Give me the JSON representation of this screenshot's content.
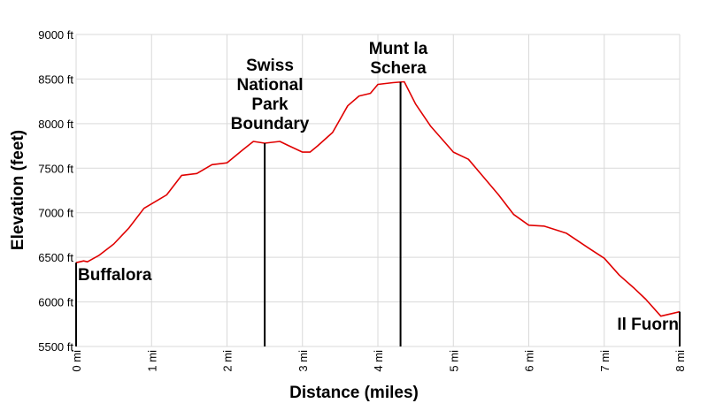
{
  "chart_data": {
    "type": "line",
    "title": "",
    "xlabel": "Distance (miles)",
    "ylabel": "Elevation (feet)",
    "xlim": [
      0,
      8
    ],
    "ylim": [
      5500,
      9000
    ],
    "grid": true,
    "x_ticks": [
      {
        "v": 0,
        "label": "0 mi"
      },
      {
        "v": 1,
        "label": "1 mi"
      },
      {
        "v": 2,
        "label": "2 mi"
      },
      {
        "v": 3,
        "label": "3 mi"
      },
      {
        "v": 4,
        "label": "4 mi"
      },
      {
        "v": 5,
        "label": "5 mi"
      },
      {
        "v": 6,
        "label": "6 mi"
      },
      {
        "v": 7,
        "label": "7 mi"
      },
      {
        "v": 8,
        "label": "8 mi"
      }
    ],
    "y_ticks": [
      {
        "v": 5500,
        "label": "5500 ft"
      },
      {
        "v": 6000,
        "label": "6000 ft"
      },
      {
        "v": 6500,
        "label": "6500 ft"
      },
      {
        "v": 7000,
        "label": "7000 ft"
      },
      {
        "v": 7500,
        "label": "7500 ft"
      },
      {
        "v": 8000,
        "label": "8000 ft"
      },
      {
        "v": 8500,
        "label": "8500 ft"
      },
      {
        "v": 9000,
        "label": "9000 ft"
      }
    ],
    "line_color": "#e00000",
    "series": [
      {
        "x": [
          0,
          0.1,
          0.15,
          0.3,
          0.5,
          0.7,
          0.9,
          1.1,
          1.2,
          1.4,
          1.6,
          1.8,
          2.0,
          2.2,
          2.35,
          2.5,
          2.7,
          2.8,
          3.0,
          3.1,
          3.2,
          3.4,
          3.6,
          3.75,
          3.9,
          4.0,
          4.2,
          4.35,
          4.5,
          4.7,
          5.0,
          5.2,
          5.4,
          5.6,
          5.8,
          6.0,
          6.2,
          6.5,
          6.8,
          7.0,
          7.2,
          7.4,
          7.55,
          7.75,
          7.9,
          8.0
        ],
        "y": [
          6440,
          6460,
          6450,
          6520,
          6650,
          6830,
          7050,
          7150,
          7200,
          7420,
          7440,
          7540,
          7560,
          7700,
          7800,
          7780,
          7800,
          7760,
          7680,
          7680,
          7750,
          7900,
          8200,
          8310,
          8340,
          8440,
          8460,
          8470,
          8220,
          7970,
          7680,
          7600,
          7400,
          7200,
          6980,
          6860,
          6850,
          6770,
          6600,
          6490,
          6300,
          6150,
          6030,
          5840,
          5870,
          5890
        ]
      }
    ],
    "annotations": [
      {
        "label_lines": [
          "Buffalora"
        ],
        "x": 0
      },
      {
        "label_lines": [
          "Swiss",
          "National",
          "Park",
          "Boundary"
        ],
        "x": 2.5
      },
      {
        "label_lines": [
          "Munt la",
          "Schera"
        ],
        "x": 4.3
      },
      {
        "label_lines": [
          "Il Fuorn"
        ],
        "x": 8.0
      }
    ]
  }
}
